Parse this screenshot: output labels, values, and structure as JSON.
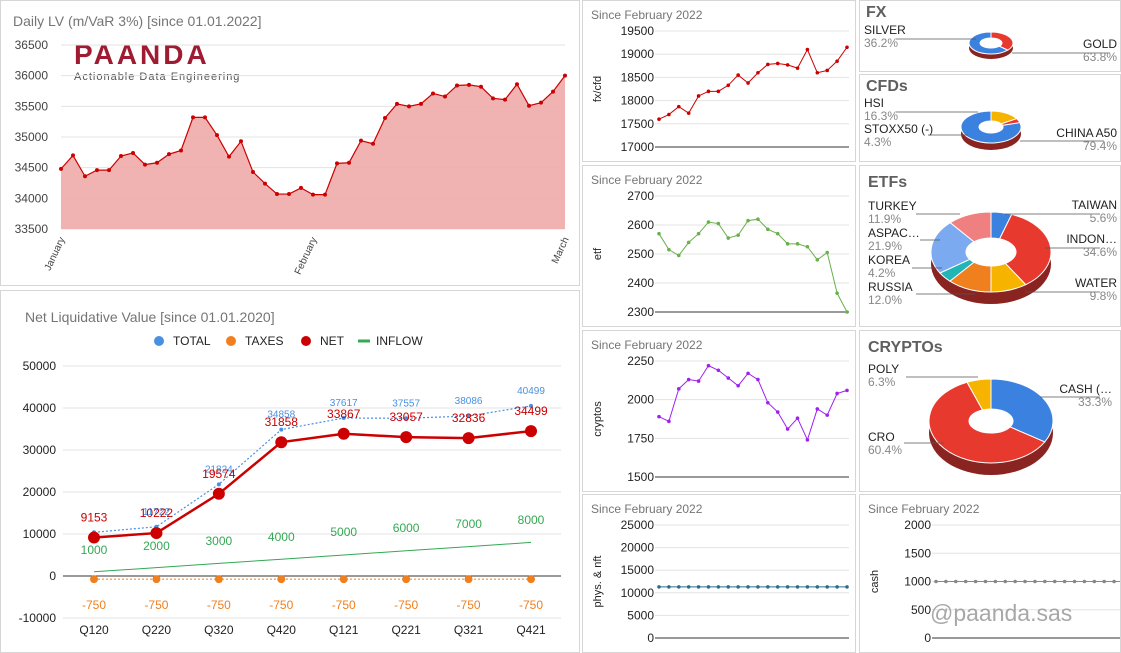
{
  "watermark": "@paanda.sas",
  "logo": {
    "name": "PAANDA",
    "tagline": "Actionable Data Engineering"
  },
  "chart_data": [
    {
      "id": "daily_lv",
      "type": "area",
      "title": "Daily LV (m/VaR 3%) [since 01.01.2022]",
      "yticks": [
        33500,
        34000,
        34500,
        35000,
        35500,
        36000,
        36500
      ],
      "ylim": [
        33500,
        36500
      ],
      "xticks": [
        "January",
        "February",
        "March"
      ],
      "color": "#cc0000",
      "fill": "#efaaaa",
      "values": [
        34480,
        34700,
        34360,
        34460,
        34460,
        34690,
        34740,
        34550,
        34580,
        34720,
        34780,
        35320,
        35320,
        35030,
        34680,
        34930,
        34430,
        34240,
        34070,
        34070,
        34170,
        34060,
        34060,
        34570,
        34580,
        34940,
        34890,
        35310,
        35540,
        35500,
        35540,
        35710,
        35660,
        35840,
        35850,
        35820,
        35630,
        35610,
        35860,
        35510,
        35560,
        35740,
        36000
      ]
    },
    {
      "id": "nlv",
      "type": "line",
      "title": "Net Liquidative Value [since 01.01.2020]",
      "categories": [
        "Q120",
        "Q220",
        "Q320",
        "Q420",
        "Q121",
        "Q221",
        "Q321",
        "Q421"
      ],
      "yticks": [
        -10000,
        0,
        10000,
        20000,
        30000,
        40000,
        50000
      ],
      "ylim": [
        -10000,
        50000
      ],
      "series": [
        {
          "name": "TOTAL",
          "color": "#4a90e2",
          "values": [
            10403,
            11722,
            21824,
            34858,
            37617,
            37557,
            38086,
            40499
          ],
          "labels": [
            "",
            "11722",
            "21824",
            "34858",
            "37617",
            "37557",
            "38086",
            "40499"
          ]
        },
        {
          "name": "TAXES",
          "color": "#f07f1e",
          "values": [
            -750,
            -750,
            -750,
            -750,
            -750,
            -750,
            -750,
            -750
          ],
          "labels": [
            "-750",
            "-750",
            "-750",
            "-750",
            "-750",
            "-750",
            "-750",
            "-750"
          ]
        },
        {
          "name": "NET",
          "color": "#cc0000",
          "values": [
            9153,
            10222,
            19574,
            31858,
            33867,
            33057,
            32836,
            34499
          ],
          "labels": [
            "9153",
            "10222",
            "19574",
            "31858",
            "33867",
            "33057",
            "32836",
            "34499"
          ]
        },
        {
          "name": "INFLOW",
          "color": "#34a853",
          "values": [
            1000,
            2000,
            3000,
            4000,
            5000,
            6000,
            7000,
            8000
          ],
          "labels": [
            "1000",
            "2000",
            "3000",
            "4000",
            "5000",
            "6000",
            "7000",
            "8000"
          ]
        }
      ]
    },
    {
      "id": "fxcfd",
      "type": "line",
      "title": "Since February 2022",
      "ylabel": "fx/cfd",
      "yticks": [
        17000,
        17500,
        18000,
        18500,
        19000,
        19500
      ],
      "ylim": [
        17000,
        19500
      ],
      "color": "#cc0000",
      "values": [
        17600,
        17700,
        17870,
        17730,
        18100,
        18200,
        18200,
        18330,
        18550,
        18380,
        18600,
        18780,
        18800,
        18770,
        18700,
        19100,
        18600,
        18650,
        18850,
        19150
      ]
    },
    {
      "id": "etf",
      "type": "line",
      "title": "Since February 2022",
      "ylabel": "etf",
      "yticks": [
        2300,
        2400,
        2500,
        2600,
        2700
      ],
      "ylim": [
        2300,
        2700
      ],
      "color": "#6ab04c",
      "values": [
        2570,
        2515,
        2495,
        2540,
        2570,
        2610,
        2605,
        2555,
        2565,
        2615,
        2620,
        2585,
        2570,
        2535,
        2535,
        2525,
        2480,
        2505,
        2365,
        2300
      ]
    },
    {
      "id": "cryptos",
      "type": "line",
      "title": "Since February 2022",
      "ylabel": "cryptos",
      "yticks": [
        1500,
        1750,
        2000,
        2250
      ],
      "ylim": [
        1500,
        2250
      ],
      "color": "#a020f0",
      "values": [
        1890,
        1860,
        2070,
        2130,
        2120,
        2220,
        2190,
        2140,
        2090,
        2170,
        2130,
        1980,
        1920,
        1810,
        1880,
        1740,
        1940,
        1900,
        2040,
        2060
      ]
    },
    {
      "id": "phys_nft",
      "type": "line",
      "title": "Since February 2022",
      "ylabel": "phys. & nft",
      "yticks": [
        0,
        5000,
        10000,
        15000,
        20000,
        25000
      ],
      "ylim": [
        0,
        25000
      ],
      "color": "#2c6e8a",
      "values": [
        11300,
        11300,
        11300,
        11300,
        11300,
        11300,
        11300,
        11300,
        11300,
        11300,
        11300,
        11300,
        11300,
        11300,
        11300,
        11300,
        11300,
        11300,
        11300,
        11300
      ]
    },
    {
      "id": "cash",
      "type": "line",
      "title": "Since February 2022",
      "ylabel": "cash",
      "yticks": [
        0,
        500,
        1000,
        1500,
        2000
      ],
      "ylim": [
        0,
        2000
      ],
      "color": "#888888",
      "values": [
        1000,
        1000,
        1000,
        1000,
        1000,
        1000,
        1000,
        1000,
        1000,
        1000,
        1000,
        1000,
        1000,
        1000,
        1000,
        1000,
        1000,
        1000,
        1000,
        1000
      ]
    },
    {
      "id": "fx",
      "type": "pie",
      "title": "FX",
      "slices": [
        {
          "label": "SILVER",
          "pct": "36.2%",
          "value": 36.2,
          "color": "#e8392f"
        },
        {
          "label": "GOLD",
          "pct": "63.8%",
          "value": 63.8,
          "color": "#3b82e0"
        }
      ]
    },
    {
      "id": "cfds",
      "type": "pie",
      "title": "CFDs",
      "slices": [
        {
          "label": "HSI",
          "pct": "16.3%",
          "value": 16.3,
          "color": "#f6b400"
        },
        {
          "label": "STOXX50 (-)",
          "pct": "4.3%",
          "value": 4.3,
          "color": "#e8392f"
        },
        {
          "label": "CHINA A50",
          "pct": "79.4%",
          "value": 79.4,
          "color": "#3b82e0"
        }
      ]
    },
    {
      "id": "etfs",
      "type": "pie",
      "title": "ETFs",
      "slices": [
        {
          "label": "TAIWAN",
          "pct": "5.6%",
          "value": 5.6,
          "color": "#3b82e0"
        },
        {
          "label": "INDON…",
          "pct": "34.6%",
          "value": 34.6,
          "color": "#e8392f"
        },
        {
          "label": "WATER",
          "pct": "9.8%",
          "value": 9.8,
          "color": "#f6b400"
        },
        {
          "label": "RUSSIA",
          "pct": "12.0%",
          "value": 12.0,
          "color": "#f07f1e"
        },
        {
          "label": "KOREA",
          "pct": "4.2%",
          "value": 4.2,
          "color": "#22b5b5"
        },
        {
          "label": "ASPAC…",
          "pct": "21.9%",
          "value": 21.9,
          "color": "#7baaf0"
        },
        {
          "label": "TURKEY",
          "pct": "11.9%",
          "value": 11.9,
          "color": "#f08080"
        }
      ]
    },
    {
      "id": "cryptos_pie",
      "type": "pie",
      "title": "CRYPTOs",
      "slices": [
        {
          "label": "CASH (…",
          "pct": "33.3%",
          "value": 33.3,
          "color": "#3b82e0"
        },
        {
          "label": "CRO",
          "pct": "60.4%",
          "value": 60.4,
          "color": "#e8392f"
        },
        {
          "label": "POLY",
          "pct": "6.3%",
          "value": 6.3,
          "color": "#f6b400"
        }
      ]
    }
  ]
}
